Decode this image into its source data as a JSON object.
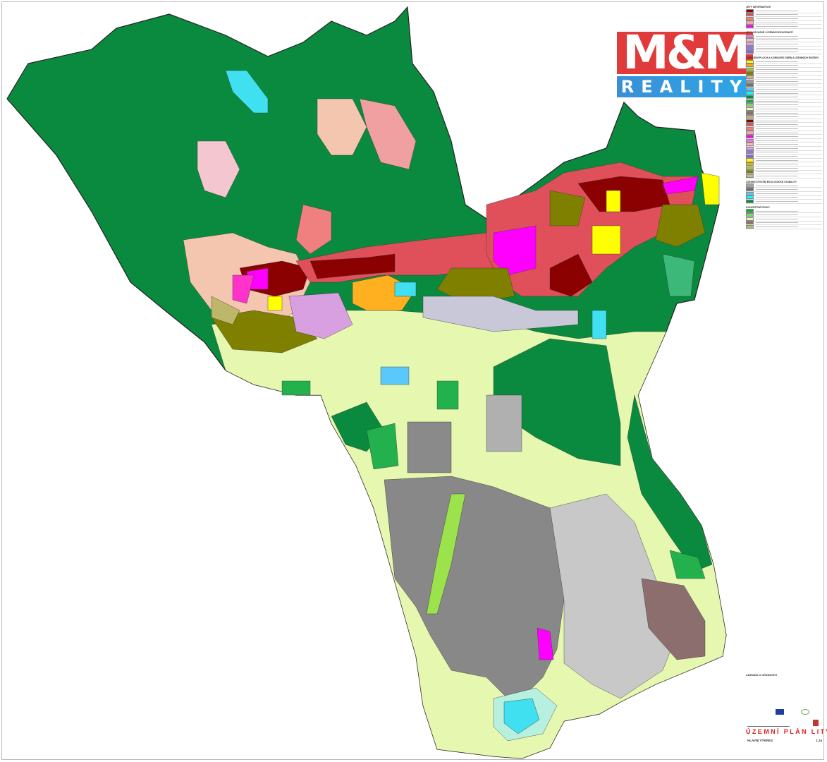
{
  "logo": {
    "top_text": "M&M",
    "bottom_text": "REALITY",
    "red": "#e03a3a",
    "blue": "#2ea7e8"
  },
  "legend": {
    "sections": [
      "JEVY INFORMATIVNÍ",
      "JEVY ZÁVAZNÉ / ÚZEMNÍ ROZHODNUTÍ",
      "VYMEZENÍ PLOCH A KORIDORŮ ZMĚN A ÚZEMNÍCH REZERV",
      "ÚZEMNÍ SYSTÉM EKOLOGICKÉ STABILITY",
      "KONCEPČNÍ PRVKY"
    ],
    "swatches": [
      "#8b0000",
      "#e0505a",
      "#f08080",
      "#f4a6a0",
      "#ff00ff",
      "#e87ad8",
      "#ffb6c1",
      "#d8a0e0",
      "#a070e0",
      "#7b68ee",
      "#ffff00",
      "#ffa500",
      "#9acd32",
      "#808000",
      "#d2b48c",
      "#a0a0a0",
      "#707070",
      "#5ac8fa",
      "#00ffff",
      "#0a8a3e",
      "#1ea84c",
      "#7ed36a",
      "#e6f7b0",
      "#8d6e6e",
      "#bdb76b"
    ]
  },
  "map": {
    "colors": {
      "forest": "#0a8a3e",
      "agriculture": "#e6f7b0",
      "industry": "#888888",
      "housing_dense": "#8b0000",
      "housing": "#e0505a",
      "civic": "#ff00ff",
      "water": "#40e0f0",
      "brownfield": "#8d6e6e",
      "sport": "#ffff00",
      "mixed": "#808000",
      "garden": "#f4c6b0",
      "park": "#22b14c"
    }
  },
  "title_block": {
    "record_heading": "ZÁZNAM O ÚČINNOSTI",
    "title": "ÚZEMNÍ PLÁN LITVÍNOV",
    "drawing_name": "HLAVNÍ VÝKRES",
    "drawing_number": "1.2a"
  }
}
